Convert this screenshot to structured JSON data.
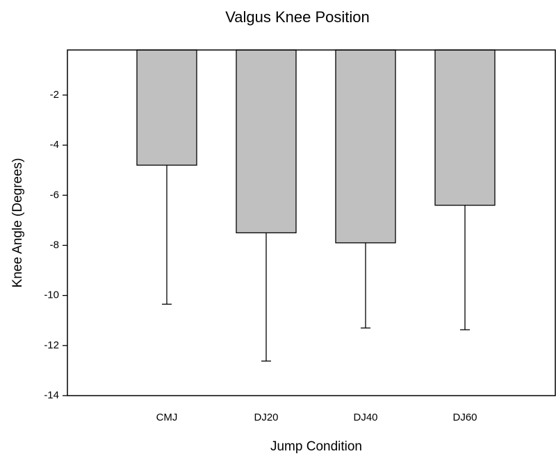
{
  "chart_data": {
    "type": "bar",
    "title": "Valgus Knee Position",
    "x_label": "Jump Condition",
    "y_label": "Knee Angle (Degrees)",
    "categories": [
      "CMJ",
      "DJ20",
      "DJ40",
      "DJ60"
    ],
    "values": [
      -4.8,
      -7.5,
      -7.9,
      -6.4
    ],
    "errors": [
      5.55,
      5.12,
      3.4,
      4.97
    ],
    "color": "#c0c0c0",
    "ylim": [
      -14,
      -0.2
    ],
    "yticks": [
      -2,
      -4,
      -6,
      -8,
      -10,
      -12,
      -14
    ],
    "grid": false
  }
}
